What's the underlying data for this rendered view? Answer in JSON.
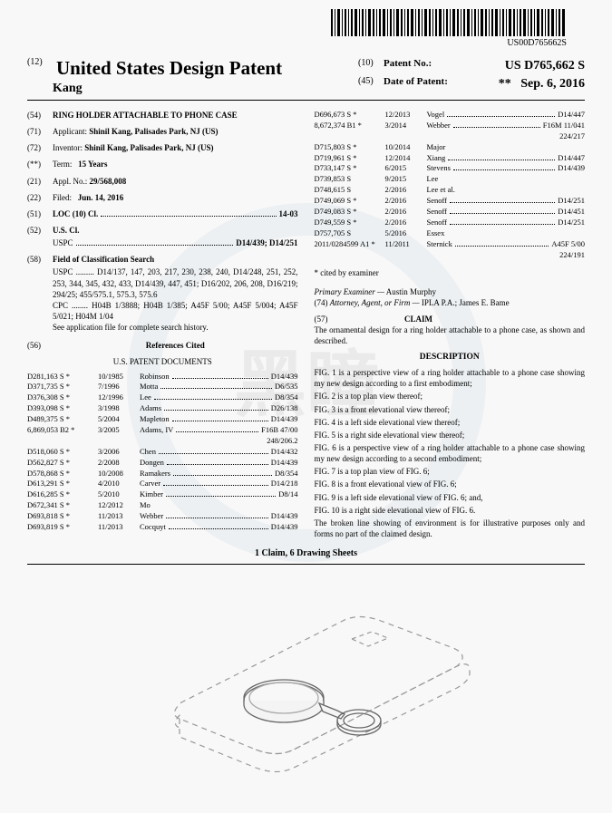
{
  "barcode_text": "US00D765662S",
  "header": {
    "country": "United States Design Patent",
    "inventor": "Kang",
    "patent_no_label": "Patent No.:",
    "patent_no": "US D765,662 S",
    "date_label": "Date of Patent:",
    "date_stars": "**",
    "date": "Sep. 6, 2016",
    "code_left": "(12)",
    "code_pno": "(10)",
    "code_date": "(45)"
  },
  "fields": {
    "title": {
      "code": "(54)",
      "text": "RING HOLDER ATTACHABLE TO PHONE CASE"
    },
    "applicant": {
      "code": "(71)",
      "label": "Applicant:",
      "text": "Shinil Kang, Palisades Park, NJ (US)"
    },
    "inventor": {
      "code": "(72)",
      "label": "Inventor:",
      "text": "Shinil Kang, Palisades Park, NJ (US)"
    },
    "term": {
      "code": "(**)",
      "label": "Term:",
      "text": "15 Years"
    },
    "appl": {
      "code": "(21)",
      "label": "Appl. No.:",
      "text": "29/568,008"
    },
    "filed": {
      "code": "(22)",
      "label": "Filed:",
      "text": "Jun. 14, 2016"
    },
    "loc": {
      "code": "(51)",
      "label": "LOC (10) Cl.",
      "text": "14-03"
    },
    "uscl": {
      "code": "(52)",
      "label": "U.S. Cl.",
      "uspc_label": "USPC",
      "uspc": "D14/439; D14/251"
    },
    "fcs": {
      "code": "(58)",
      "label": "Field of Classification Search",
      "uspc": "USPC ......... D14/137, 147, 203, 217, 230, 238, 240, D14/248, 251, 252, 253, 344, 345, 432, 433, D14/439, 447, 451; D16/202, 206, 208, D16/219; 294/25; 455/575.1, 575.3, 575.6",
      "cpc": "CPC ........ H04B 1/3888; H04B 1/385; A45F 5/00; A45F 5/004; A45F 5/021; H04M 1/04",
      "note": "See application file for complete search history."
    },
    "refs": {
      "code": "(56)",
      "label": "References Cited",
      "subhead": "U.S. PATENT DOCUMENTS"
    }
  },
  "refs_left": [
    {
      "n": "D281,163 S",
      "s": "*",
      "d": "10/1985",
      "name": "Robinson",
      "c": "D14/439"
    },
    {
      "n": "D371,735 S",
      "s": "*",
      "d": "7/1996",
      "name": "Motta",
      "c": "D6/535"
    },
    {
      "n": "D376,308 S",
      "s": "*",
      "d": "12/1996",
      "name": "Lee",
      "c": "D8/354"
    },
    {
      "n": "D393,098 S",
      "s": "*",
      "d": "3/1998",
      "name": "Adams",
      "c": "D26/138"
    },
    {
      "n": "D489,375 S",
      "s": "*",
      "d": "5/2004",
      "name": "Mapleton",
      "c": "D14/439"
    },
    {
      "n": "6,869,053 B2",
      "s": "*",
      "d": "3/2005",
      "name": "Adams, IV",
      "c": "F16B 47/00",
      "c2": "248/206.2"
    },
    {
      "n": "D518,060 S",
      "s": "*",
      "d": "3/2006",
      "name": "Chen",
      "c": "D14/432"
    },
    {
      "n": "D562,827 S",
      "s": "*",
      "d": "2/2008",
      "name": "Dongen",
      "c": "D14/439"
    },
    {
      "n": "D578,868 S",
      "s": "*",
      "d": "10/2008",
      "name": "Ramakers",
      "c": "D8/354"
    },
    {
      "n": "D613,291 S",
      "s": "*",
      "d": "4/2010",
      "name": "Carver",
      "c": "D14/218"
    },
    {
      "n": "D616,285 S",
      "s": "*",
      "d": "5/2010",
      "name": "Kimber",
      "c": "D8/14"
    },
    {
      "n": "D672,341 S",
      "s": "*",
      "d": "12/2012",
      "name": "Mo",
      "c": ""
    },
    {
      "n": "D693,818 S",
      "s": "*",
      "d": "11/2013",
      "name": "Webber",
      "c": "D14/439"
    },
    {
      "n": "D693,819 S",
      "s": "*",
      "d": "11/2013",
      "name": "Cocquyt",
      "c": "D14/439"
    }
  ],
  "refs_right": [
    {
      "n": "D696,673 S",
      "s": "*",
      "d": "12/2013",
      "name": "Vogel",
      "c": "D14/447"
    },
    {
      "n": "8,672,374 B1",
      "s": "*",
      "d": "3/2014",
      "name": "Webber",
      "c": "F16M 11/041",
      "c2": "224/217"
    },
    {
      "n": "D715,803 S",
      "s": "*",
      "d": "10/2014",
      "name": "Major",
      "c": ""
    },
    {
      "n": "D719,961 S",
      "s": "*",
      "d": "12/2014",
      "name": "Xiang",
      "c": "D14/447"
    },
    {
      "n": "D733,147 S",
      "s": "*",
      "d": "6/2015",
      "name": "Stevens",
      "c": "D14/439"
    },
    {
      "n": "D739,853 S",
      "s": "",
      "d": "9/2015",
      "name": "Lee",
      "c": ""
    },
    {
      "n": "D748,615 S",
      "s": "",
      "d": "2/2016",
      "name": "Lee et al.",
      "c": ""
    },
    {
      "n": "D749,069 S",
      "s": "*",
      "d": "2/2016",
      "name": "Senoff",
      "c": "D14/251"
    },
    {
      "n": "D749,083 S",
      "s": "*",
      "d": "2/2016",
      "name": "Senoff",
      "c": "D14/451"
    },
    {
      "n": "D749,559 S",
      "s": "*",
      "d": "2/2016",
      "name": "Senoff",
      "c": "D14/251"
    },
    {
      "n": "D757,705 S",
      "s": "",
      "d": "5/2016",
      "name": "Essex",
      "c": ""
    },
    {
      "n": "2011/0284599 A1",
      "s": "*",
      "d": "11/2011",
      "name": "Sternick",
      "c": "A45F 5/00",
      "c2": "224/191"
    }
  ],
  "cited_note": "* cited by examiner",
  "examiner": {
    "label": "Primary Examiner —",
    "name": "Austin Murphy"
  },
  "attorney": {
    "code": "(74)",
    "label": "Attorney, Agent, or Firm —",
    "name": "IPLA P.A.; James E. Bame"
  },
  "claim": {
    "code": "(57)",
    "title": "CLAIM",
    "text": "The ornamental design for a ring holder attachable to a phone case, as shown and described."
  },
  "description": {
    "title": "DESCRIPTION",
    "lines": [
      "FIG. 1 is a perspective view of a ring holder attachable to a phone case showing my new design according to a first embodiment;",
      "FIG. 2 is a top plan view thereof;",
      "FIG. 3 is a front elevational view thereof;",
      "FIG. 4 is a left side elevational view thereof;",
      "FIG. 5 is a right side elevational view thereof;",
      "FIG. 6 is a perspective view of a ring holder attachable to a phone case showing my new design according to a second embodiment;",
      "FIG. 7 is a top plan view of FIG. 6;",
      "FIG. 8 is a front elevational view of FIG. 6;",
      "FIG. 9 is a left side elevational view of FIG. 6; and,",
      "FIG. 10 is a right side elevational view of FIG. 6.",
      "The broken line showing of environment is for illustrative purposes only and forms no part of the claimed design."
    ]
  },
  "footer": "1 Claim, 6 Drawing Sheets",
  "figure": {
    "phone_dash": "8,6",
    "stroke_color": "#888",
    "stroke_width": 1.2
  }
}
